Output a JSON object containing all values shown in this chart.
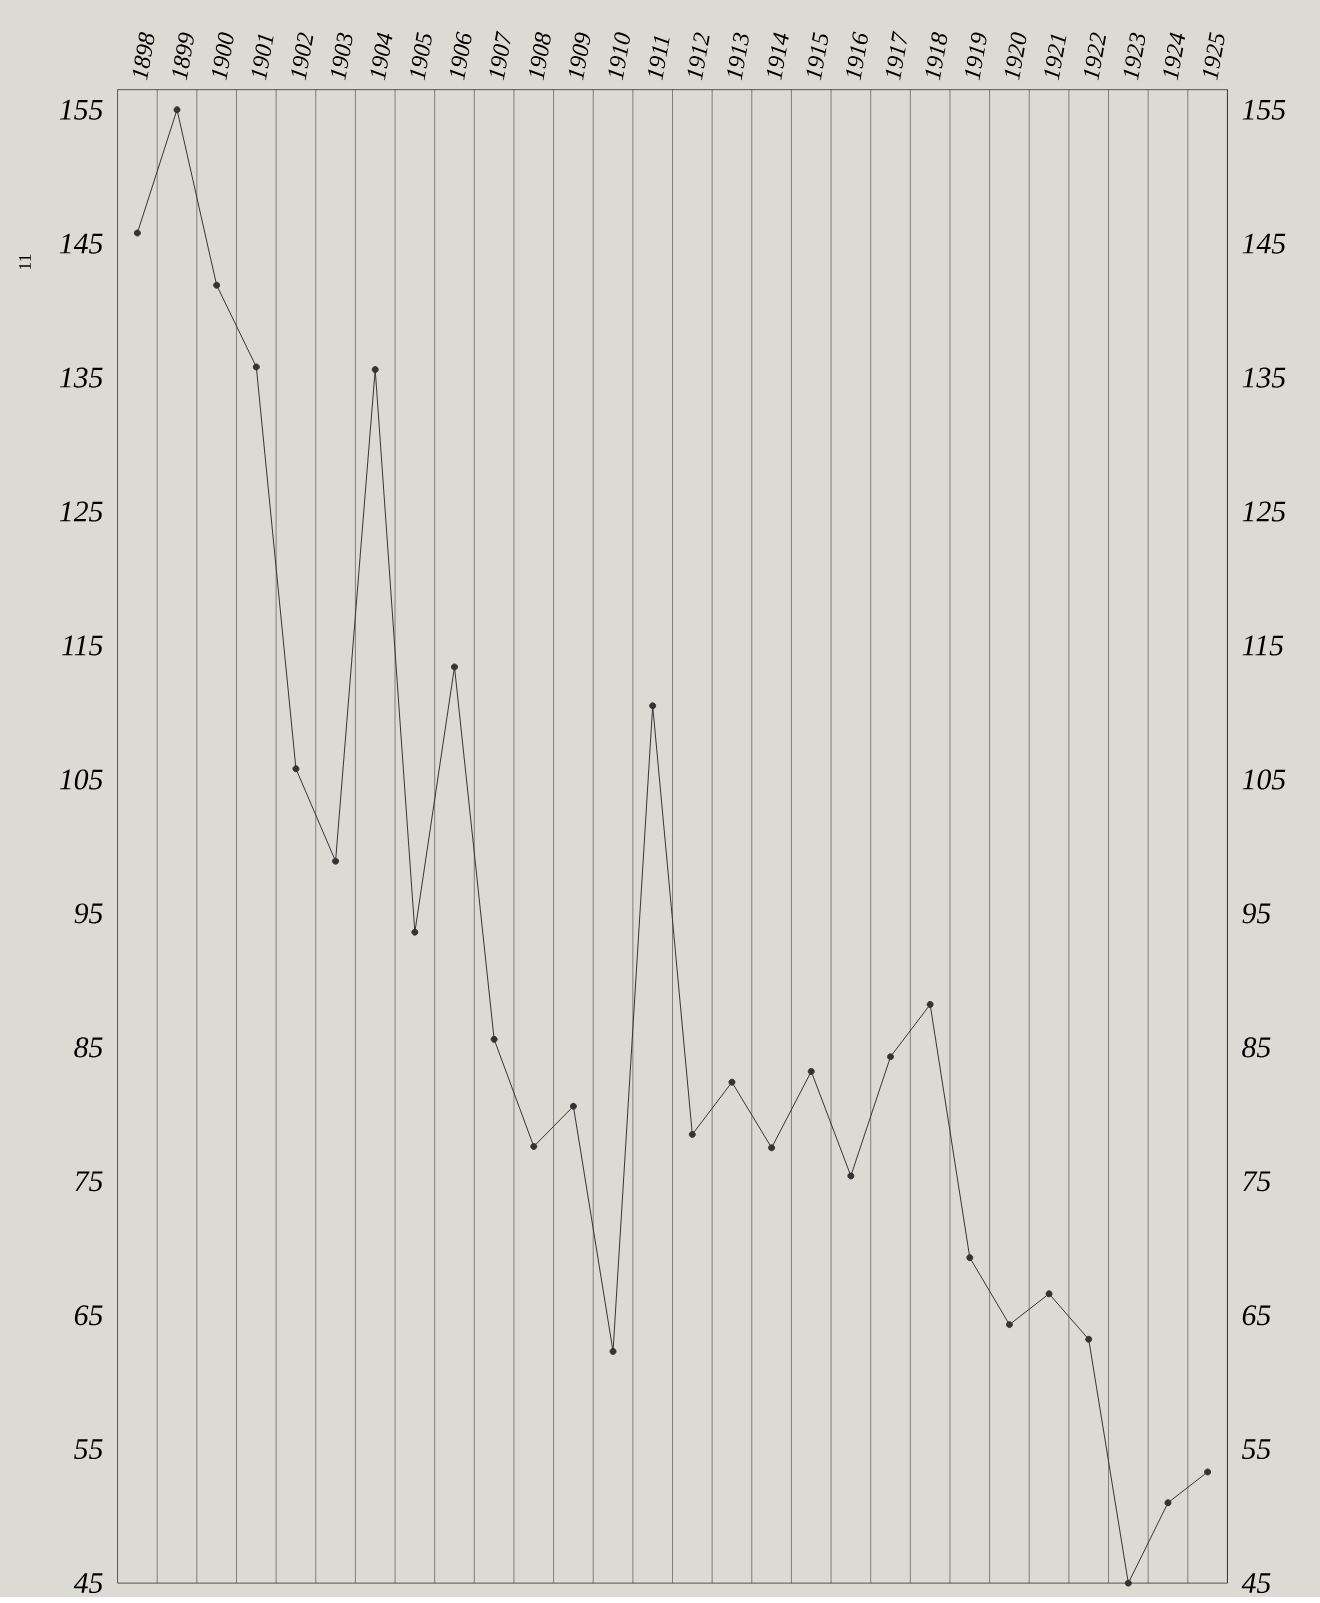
{
  "chart_data": {
    "type": "line",
    "categories": [
      "1898",
      "1899",
      "1900",
      "1901",
      "1902",
      "1903",
      "1904",
      "1905",
      "1906",
      "1907",
      "1908",
      "1909",
      "1910",
      "1911",
      "1912",
      "1913",
      "1914",
      "1915",
      "1916",
      "1917",
      "1918",
      "1919",
      "1920",
      "1921",
      "1922",
      "1923",
      "1924",
      "1925"
    ],
    "series": [
      {
        "color": "#333333",
        "values": [
          145.8,
          155,
          141.9,
          135.8,
          105.8,
          98.9,
          135.6,
          93.6,
          113.4,
          85.6,
          77.6,
          80.6,
          62.3,
          110.5,
          78.5,
          82.4,
          77.5,
          83.2,
          75.4,
          84.3,
          88.2,
          69.3,
          64.3,
          66.6,
          63.2,
          45,
          51,
          53.3
        ]
      }
    ],
    "ylim": [
      45,
      156.5
    ],
    "yticks": [
      45,
      55,
      65,
      75,
      85,
      95,
      105,
      115,
      125,
      135,
      145,
      155
    ],
    "y2lim": [
      45,
      156.5
    ],
    "y2ticks": [
      45,
      55,
      65,
      75,
      85,
      95,
      105,
      115,
      125,
      135,
      145,
      155
    ],
    "grid": "x",
    "marker": "circle",
    "line_style": "solid",
    "annotations": [
      "11"
    ]
  }
}
